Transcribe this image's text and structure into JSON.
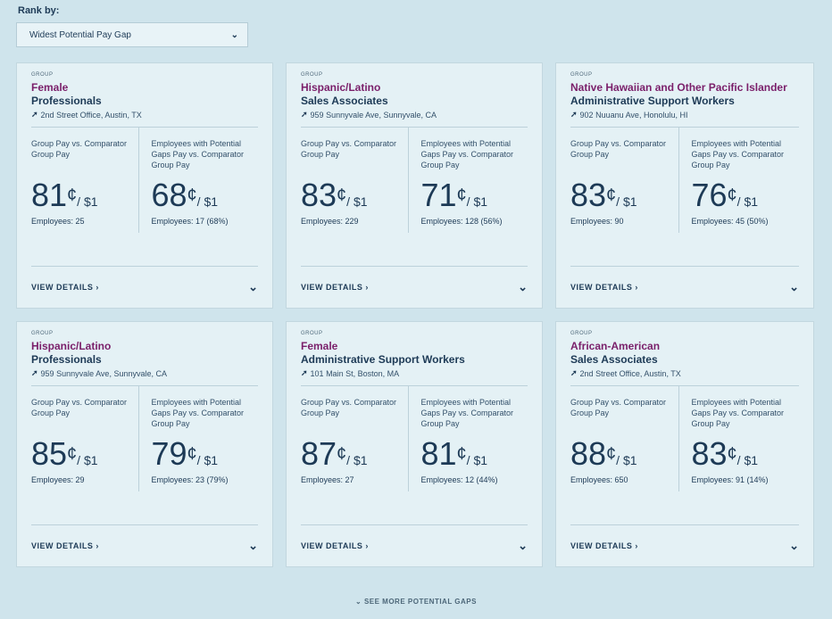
{
  "rank": {
    "label": "Rank by:",
    "selected": "Widest Potential Pay Gap"
  },
  "cards": [
    {
      "group_label": "GROUP",
      "name": "Female",
      "role": "Professionals",
      "location": "2nd Street Office, Austin, TX",
      "m1_label": "Group Pay vs. Comparator Group Pay",
      "m1_value": "81",
      "m1_unit": "/ $1",
      "m1_emp": "Employees: 25",
      "m2_label": "Employees with Potential Gaps Pay vs. Comparator Group Pay",
      "m2_value": "68",
      "m2_unit": "/ $1",
      "m2_emp": "Employees: 17 (68%)",
      "view": "VIEW DETAILS"
    },
    {
      "group_label": "GROUP",
      "name": "Hispanic/Latino",
      "role": "Sales Associates",
      "location": "959 Sunnyvale Ave, Sunnyvale, CA",
      "m1_label": "Group Pay vs. Comparator Group Pay",
      "m1_value": "83",
      "m1_unit": "/ $1",
      "m1_emp": "Employees: 229",
      "m2_label": "Employees with Potential Gaps Pay vs. Comparator Group Pay",
      "m2_value": "71",
      "m2_unit": "/ $1",
      "m2_emp": "Employees: 128 (56%)",
      "view": "VIEW DETAILS"
    },
    {
      "group_label": "GROUP",
      "name": "Native Hawaiian and Other Pacific Islander",
      "role": "Administrative Support Workers",
      "location": "902 Nuuanu Ave, Honolulu, HI",
      "m1_label": "Group Pay vs. Comparator Group Pay",
      "m1_value": "83",
      "m1_unit": "/ $1",
      "m1_emp": "Employees: 90",
      "m2_label": "Employees with Potential Gaps Pay vs. Comparator Group Pay",
      "m2_value": "76",
      "m2_unit": "/ $1",
      "m2_emp": "Employees: 45 (50%)",
      "view": "VIEW DETAILS"
    },
    {
      "group_label": "GROUP",
      "name": "Hispanic/Latino",
      "role": "Professionals",
      "location": "959 Sunnyvale Ave, Sunnyvale, CA",
      "m1_label": "Group Pay vs. Comparator Group Pay",
      "m1_value": "85",
      "m1_unit": "/ $1",
      "m1_emp": "Employees: 29",
      "m2_label": "Employees with Potential Gaps Pay vs. Comparator Group Pay",
      "m2_value": "79",
      "m2_unit": "/ $1",
      "m2_emp": "Employees: 23 (79%)",
      "view": "VIEW DETAILS"
    },
    {
      "group_label": "GROUP",
      "name": "Female",
      "role": "Administrative Support Workers",
      "location": "101 Main St, Boston, MA",
      "m1_label": "Group Pay vs. Comparator Group Pay",
      "m1_value": "87",
      "m1_unit": "/ $1",
      "m1_emp": "Employees: 27",
      "m2_label": "Employees with Potential Gaps Pay vs. Comparator Group Pay",
      "m2_value": "81",
      "m2_unit": "/ $1",
      "m2_emp": "Employees: 12 (44%)",
      "view": "VIEW DETAILS"
    },
    {
      "group_label": "GROUP",
      "name": "African-American",
      "role": "Sales Associates",
      "location": "2nd Street Office, Austin, TX",
      "m1_label": "Group Pay vs. Comparator Group Pay",
      "m1_value": "88",
      "m1_unit": "/ $1",
      "m1_emp": "Employees: 650",
      "m2_label": "Employees with Potential Gaps Pay vs. Comparator Group Pay",
      "m2_value": "83",
      "m2_unit": "/ $1",
      "m2_emp": "Employees: 91 (14%)",
      "view": "VIEW DETAILS"
    }
  ],
  "glyphs": {
    "cent": "¢",
    "view_arrow": "›",
    "expand": "⌄",
    "location": "➚",
    "dropdown": "⌄",
    "see_more_arrow": "⌄"
  },
  "see_more": "SEE MORE POTENTIAL GAPS"
}
